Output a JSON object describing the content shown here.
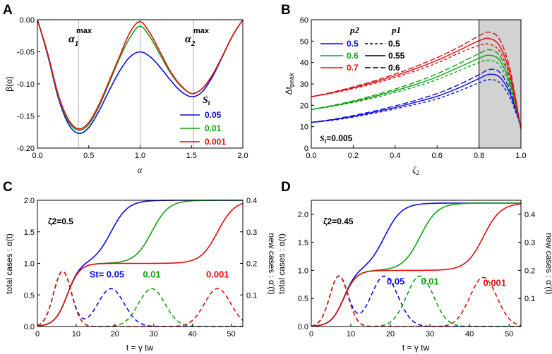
{
  "colors": {
    "blue": "#0a0ae6",
    "green": "#0fa30f",
    "red": "#e60a0a",
    "gray": "#b0b0b0",
    "shade": "#d2d2d2"
  },
  "chart_data": [
    {
      "panel": "A",
      "type": "line",
      "xlabel": "α",
      "ylabel": "β(α)",
      "xlim": [
        0,
        2
      ],
      "ylim": [
        -0.2,
        0
      ],
      "xticks": [
        "0.0",
        "0.5",
        "1.0",
        "1.5",
        "2.0"
      ],
      "yticks": [
        "0.00",
        "-0.05",
        "-0.10",
        "-0.15",
        "-0.20"
      ],
      "vlines": [
        0.4,
        1.0,
        1.52
      ],
      "annotations": [
        {
          "text": "α",
          "sub": "1",
          "sup": "max"
        },
        {
          "text": "α",
          "sub": "2",
          "sup": "max"
        }
      ],
      "legend_title": "St",
      "series": [
        {
          "name": "0.05",
          "color": "blue",
          "x": [
            0,
            0.1,
            0.2,
            0.3,
            0.4,
            0.5,
            0.6,
            0.7,
            0.8,
            0.9,
            1.0,
            1.1,
            1.2,
            1.3,
            1.4,
            1.5,
            1.6,
            1.7,
            1.8,
            1.9,
            2.0
          ],
          "y": [
            0,
            -0.055,
            -0.12,
            -0.162,
            -0.177,
            -0.168,
            -0.142,
            -0.11,
            -0.08,
            -0.058,
            -0.05,
            -0.058,
            -0.075,
            -0.095,
            -0.112,
            -0.12,
            -0.113,
            -0.09,
            -0.058,
            -0.025,
            0
          ]
        },
        {
          "name": "0.01",
          "color": "green",
          "x": [
            0,
            0.1,
            0.2,
            0.3,
            0.4,
            0.5,
            0.6,
            0.7,
            0.8,
            0.9,
            1.0,
            1.1,
            1.2,
            1.3,
            1.4,
            1.5,
            1.6,
            1.7,
            1.8,
            1.9,
            2.0
          ],
          "y": [
            0,
            -0.053,
            -0.117,
            -0.158,
            -0.172,
            -0.163,
            -0.135,
            -0.098,
            -0.06,
            -0.028,
            -0.01,
            -0.028,
            -0.056,
            -0.084,
            -0.104,
            -0.115,
            -0.108,
            -0.087,
            -0.057,
            -0.025,
            0
          ]
        },
        {
          "name": "0.001",
          "color": "red",
          "x": [
            0,
            0.1,
            0.2,
            0.3,
            0.4,
            0.5,
            0.6,
            0.7,
            0.8,
            0.9,
            1.0,
            1.1,
            1.2,
            1.3,
            1.4,
            1.5,
            1.6,
            1.7,
            1.8,
            1.9,
            2.0
          ],
          "y": [
            0,
            -0.052,
            -0.115,
            -0.155,
            -0.17,
            -0.16,
            -0.132,
            -0.095,
            -0.057,
            -0.02,
            -0.003,
            -0.022,
            -0.052,
            -0.082,
            -0.103,
            -0.115,
            -0.108,
            -0.087,
            -0.057,
            -0.025,
            0
          ]
        }
      ]
    },
    {
      "panel": "B",
      "type": "line",
      "xlabel": "ζ2",
      "ylabel": "Δtpeak",
      "xlim": [
        0,
        1
      ],
      "ylim": [
        0,
        60
      ],
      "xticks": [
        "0.0",
        "0.2",
        "0.4",
        "0.6",
        "0.8",
        "1.0"
      ],
      "yticks": [
        "0",
        "10",
        "20",
        "30",
        "40",
        "50",
        "60"
      ],
      "shaded_region": [
        0.8,
        1.0
      ],
      "annotation": "St=0.005",
      "legend": {
        "col_p2": "p2",
        "col_p1": "p1",
        "p2": [
          "0.5",
          "0.6",
          "0.7"
        ],
        "p1": [
          "0.5",
          "0.55",
          "0.6"
        ]
      },
      "x": [
        0,
        0.1,
        0.2,
        0.3,
        0.4,
        0.5,
        0.6,
        0.7,
        0.8,
        0.85,
        0.9,
        0.95,
        1.0
      ],
      "series": [
        {
          "p2": "0.5",
          "p1": "0.5",
          "color": "blue",
          "dash": "dash",
          "y": [
            12,
            13,
            14.5,
            16.3,
            18.3,
            20.5,
            23,
            26.5,
            30.5,
            32,
            30.5,
            23,
            10
          ]
        },
        {
          "p2": "0.5",
          "p1": "0.55",
          "color": "blue",
          "dash": "solid",
          "y": [
            12,
            13.2,
            14.8,
            16.8,
            19,
            21.5,
            24.2,
            28,
            32.5,
            34.5,
            33,
            25,
            10
          ]
        },
        {
          "p2": "0.5",
          "p1": "0.6",
          "color": "blue",
          "dash": "longdash",
          "y": [
            12,
            13.4,
            15.2,
            17.3,
            19.7,
            22.4,
            25.5,
            29.5,
            34.3,
            36.8,
            35.3,
            26.5,
            10
          ]
        },
        {
          "p2": "0.6",
          "p1": "0.5",
          "color": "green",
          "dash": "dash",
          "y": [
            18,
            19.5,
            21.3,
            23.5,
            26,
            28.8,
            32,
            36,
            40,
            41,
            38.5,
            28,
            9.5
          ]
        },
        {
          "p2": "0.6",
          "p1": "0.55",
          "color": "green",
          "dash": "solid",
          "y": [
            18,
            19.7,
            21.7,
            24.1,
            26.8,
            29.8,
            33.3,
            37.6,
            42,
            43.4,
            40.8,
            29.5,
            9.5
          ]
        },
        {
          "p2": "0.6",
          "p1": "0.6",
          "color": "green",
          "dash": "longdash",
          "y": [
            18,
            19.9,
            22.1,
            24.7,
            27.6,
            30.9,
            34.7,
            39.3,
            44.2,
            46,
            43,
            31,
            9.5
          ]
        },
        {
          "p2": "0.7",
          "p1": "0.5",
          "color": "red",
          "dash": "dash",
          "y": [
            24,
            25.7,
            27.8,
            30.2,
            33,
            36.2,
            39.8,
            44.2,
            48,
            48.5,
            45,
            32,
            9
          ]
        },
        {
          "p2": "0.7",
          "p1": "0.55",
          "color": "red",
          "dash": "solid",
          "y": [
            24,
            25.9,
            28.2,
            30.8,
            33.8,
            37.2,
            41,
            45.5,
            50.2,
            51.2,
            47.5,
            34,
            9
          ]
        },
        {
          "p2": "0.7",
          "p1": "0.6",
          "color": "red",
          "dash": "longdash",
          "y": [
            24,
            26.1,
            28.6,
            31.4,
            34.6,
            38.2,
            42.3,
            47,
            52.5,
            54.2,
            50.5,
            36,
            9
          ]
        }
      ]
    },
    {
      "panel": "C",
      "type": "line",
      "xlabel": "t = γ tw",
      "ylabel": "total cases : α(t)",
      "y2label": "new cases : α'(t)",
      "xlim": [
        0,
        53
      ],
      "ylim": [
        0,
        2.0
      ],
      "y2lim": [
        0,
        0.4
      ],
      "xticks": [
        "0",
        "10",
        "20",
        "30",
        "40",
        "50"
      ],
      "yticks": [
        "0.0",
        "0.5",
        "1.0",
        "1.5",
        "2.0"
      ],
      "y2ticks": [
        "0.1",
        "0.2",
        "0.3",
        "0.4"
      ],
      "annotation": "ζ2=0.5",
      "labels": [
        "St= 0.05",
        "0.01",
        "0.001"
      ],
      "series": [
        {
          "name": "0.05",
          "color": "blue",
          "peak2": 19,
          "peak2_height": 0.12
        },
        {
          "name": "0.01",
          "color": "green",
          "peak2": 29.5,
          "peak2_height": 0.12
        },
        {
          "name": "0.001",
          "color": "red",
          "peak2": 46.5,
          "peak2_height": 0.12
        }
      ],
      "peak1": 6.5,
      "peak1_height": 0.175,
      "plateau": 1.0,
      "final": 2.0
    },
    {
      "panel": "D",
      "type": "line",
      "xlabel": "t = γ tw",
      "ylabel": "total cases : α(t)",
      "y2label": "new cases : α'(t)",
      "xlim": [
        0,
        53
      ],
      "ylim": [
        0,
        2.25
      ],
      "y2lim": [
        0,
        0.45
      ],
      "xticks": [
        "0",
        "10",
        "20",
        "30",
        "40",
        "50"
      ],
      "yticks": [
        "0.0",
        "0.5",
        "1.0",
        "1.5",
        "2.0"
      ],
      "y2ticks": [
        "0.1",
        "0.2",
        "0.3",
        "0.4"
      ],
      "annotation": "ζ2=0.45",
      "labels": [
        "0.05",
        "0.01",
        "0.001"
      ],
      "series": [
        {
          "name": "0.05",
          "color": "blue",
          "peak2": 18.5,
          "peak2_height": 0.18
        },
        {
          "name": "0.01",
          "color": "green",
          "peak2": 27.5,
          "peak2_height": 0.18
        },
        {
          "name": "0.001",
          "color": "red",
          "peak2": 43.5,
          "peak2_height": 0.175
        }
      ],
      "peak1": 7,
      "peak1_height": 0.18,
      "plateau": 1.0,
      "final": 2.2
    }
  ]
}
